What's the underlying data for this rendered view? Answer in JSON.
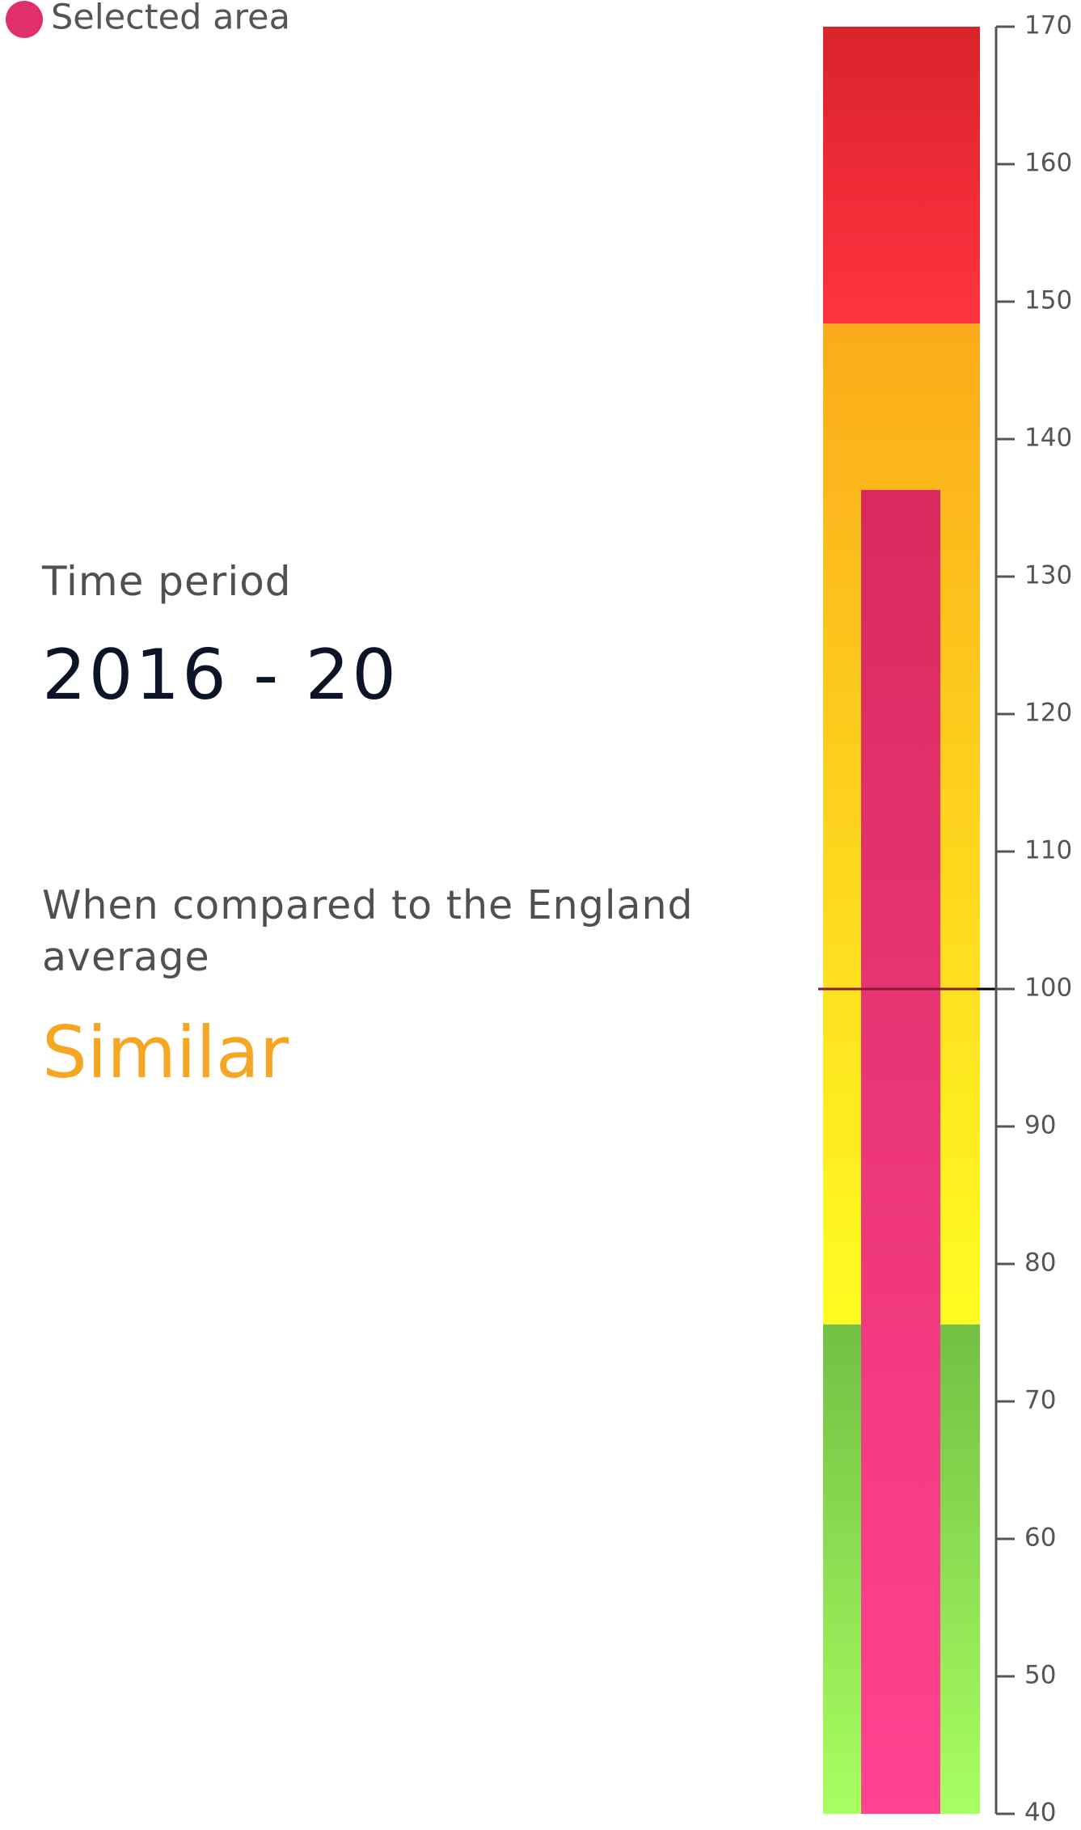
{
  "time_period": {
    "label": "Time period",
    "value": "2016 - 20"
  },
  "comparison": {
    "label": "When compared to the England average",
    "value": "Similar"
  },
  "chart_data": {
    "type": "bar",
    "series": [
      {
        "name": "Selected area",
        "color": "#e0306a",
        "colors": [
          "#d82a5f",
          "#ff4391"
        ],
        "values": [
          136.3
        ]
      }
    ],
    "bands": [
      {
        "from": 148.4,
        "to": 170,
        "colors": [
          "#d9232b",
          "#ff3340"
        ]
      },
      {
        "from": 75.6,
        "to": 148.4,
        "colors": [
          "#fbab1a",
          "#fffc22"
        ]
      },
      {
        "from": 40,
        "to": 75.6,
        "colors": [
          "#72c044",
          "#a8ff60"
        ]
      }
    ],
    "reference_line": {
      "value": 100,
      "color": "#8b1a2a"
    },
    "ylim": [
      40,
      170
    ],
    "yticks": [
      40,
      50,
      60,
      70,
      80,
      90,
      100,
      110,
      120,
      130,
      140,
      150,
      160,
      170
    ]
  }
}
